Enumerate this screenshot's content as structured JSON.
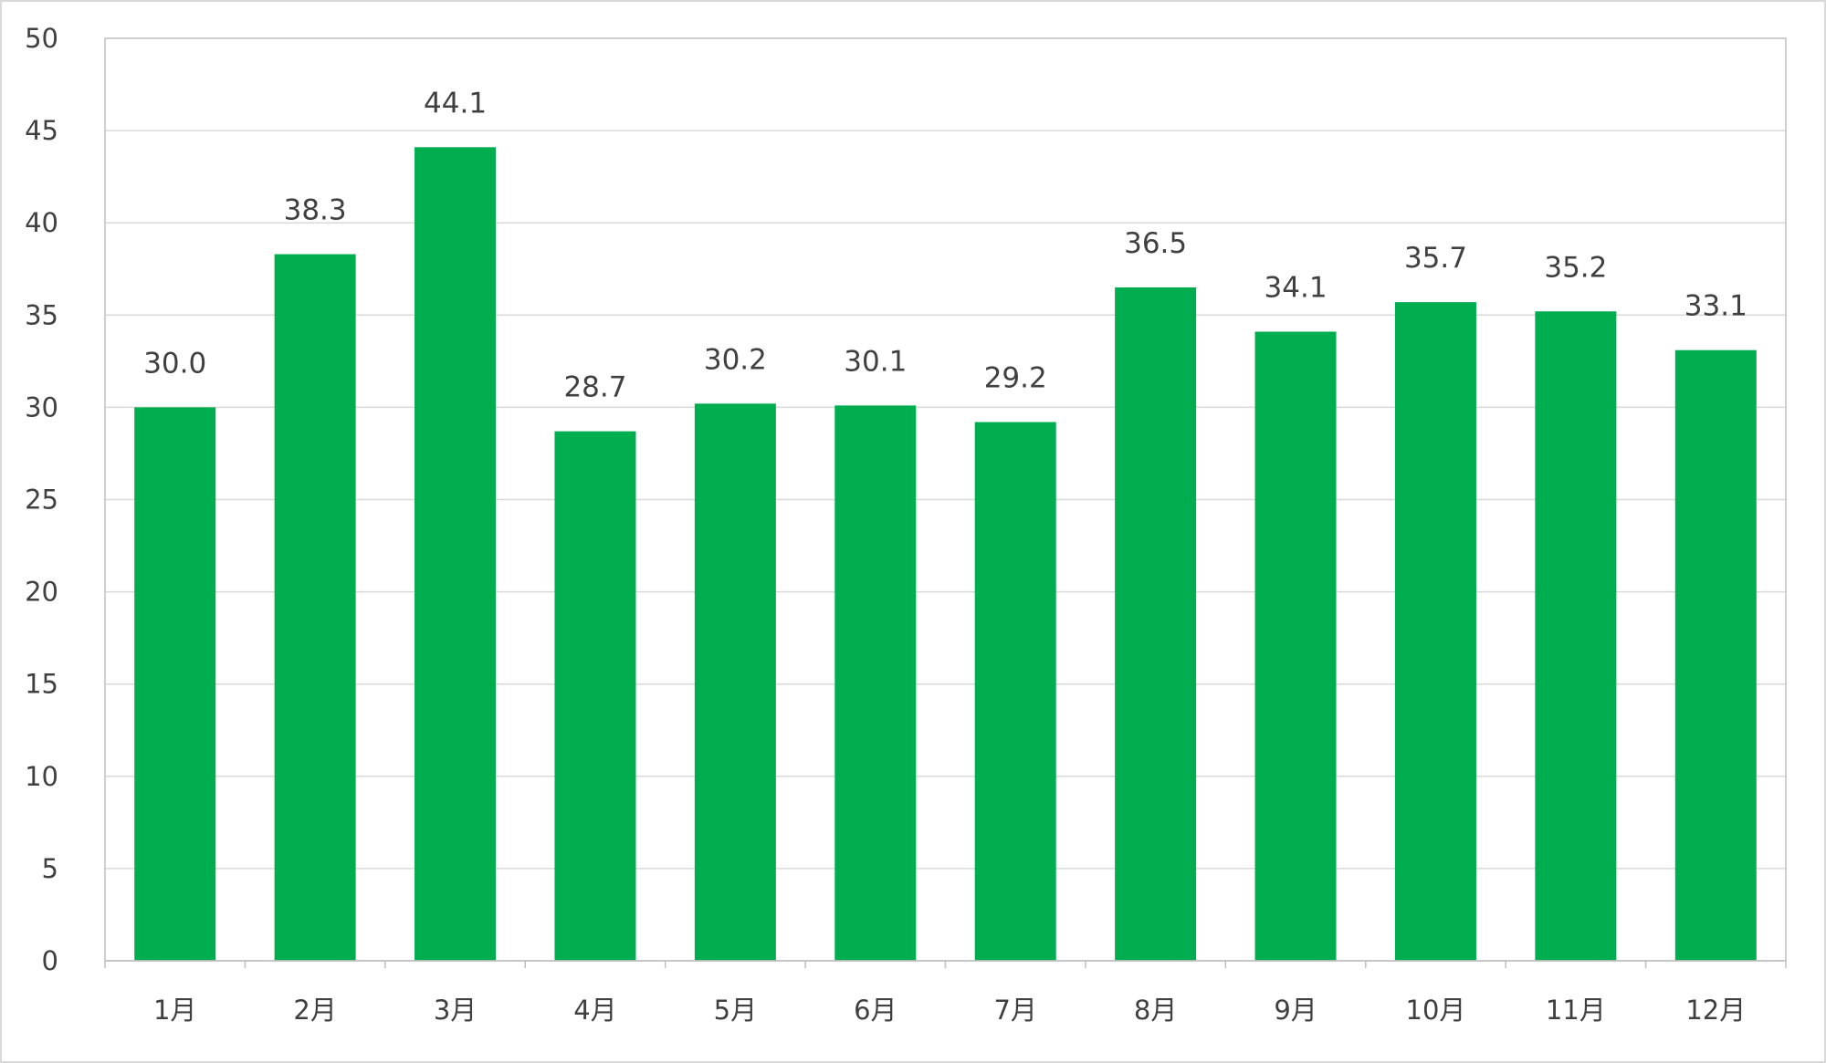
{
  "chart_data": {
    "type": "bar",
    "categories": [
      "1月",
      "2月",
      "3月",
      "4月",
      "5月",
      "6月",
      "7月",
      "8月",
      "9月",
      "10月",
      "11月",
      "12月"
    ],
    "values": [
      30.0,
      38.3,
      44.1,
      28.7,
      30.2,
      30.1,
      29.2,
      36.5,
      34.1,
      35.7,
      35.2,
      33.1
    ],
    "data_labels": [
      "30.0",
      "38.3",
      "44.1",
      "28.7",
      "30.2",
      "30.1",
      "29.2",
      "36.5",
      "34.1",
      "35.7",
      "35.2",
      "33.1"
    ],
    "title": "",
    "xlabel": "",
    "ylabel": "",
    "ylim": [
      0,
      50
    ],
    "yticks": [
      0,
      5,
      10,
      15,
      20,
      25,
      30,
      35,
      40,
      45,
      50
    ],
    "grid": true,
    "legend": "none",
    "colors": {
      "bar": "#00AD4F",
      "grid": "#d9d9d9",
      "axis": "#bfbfbf",
      "text": "#404040"
    }
  }
}
